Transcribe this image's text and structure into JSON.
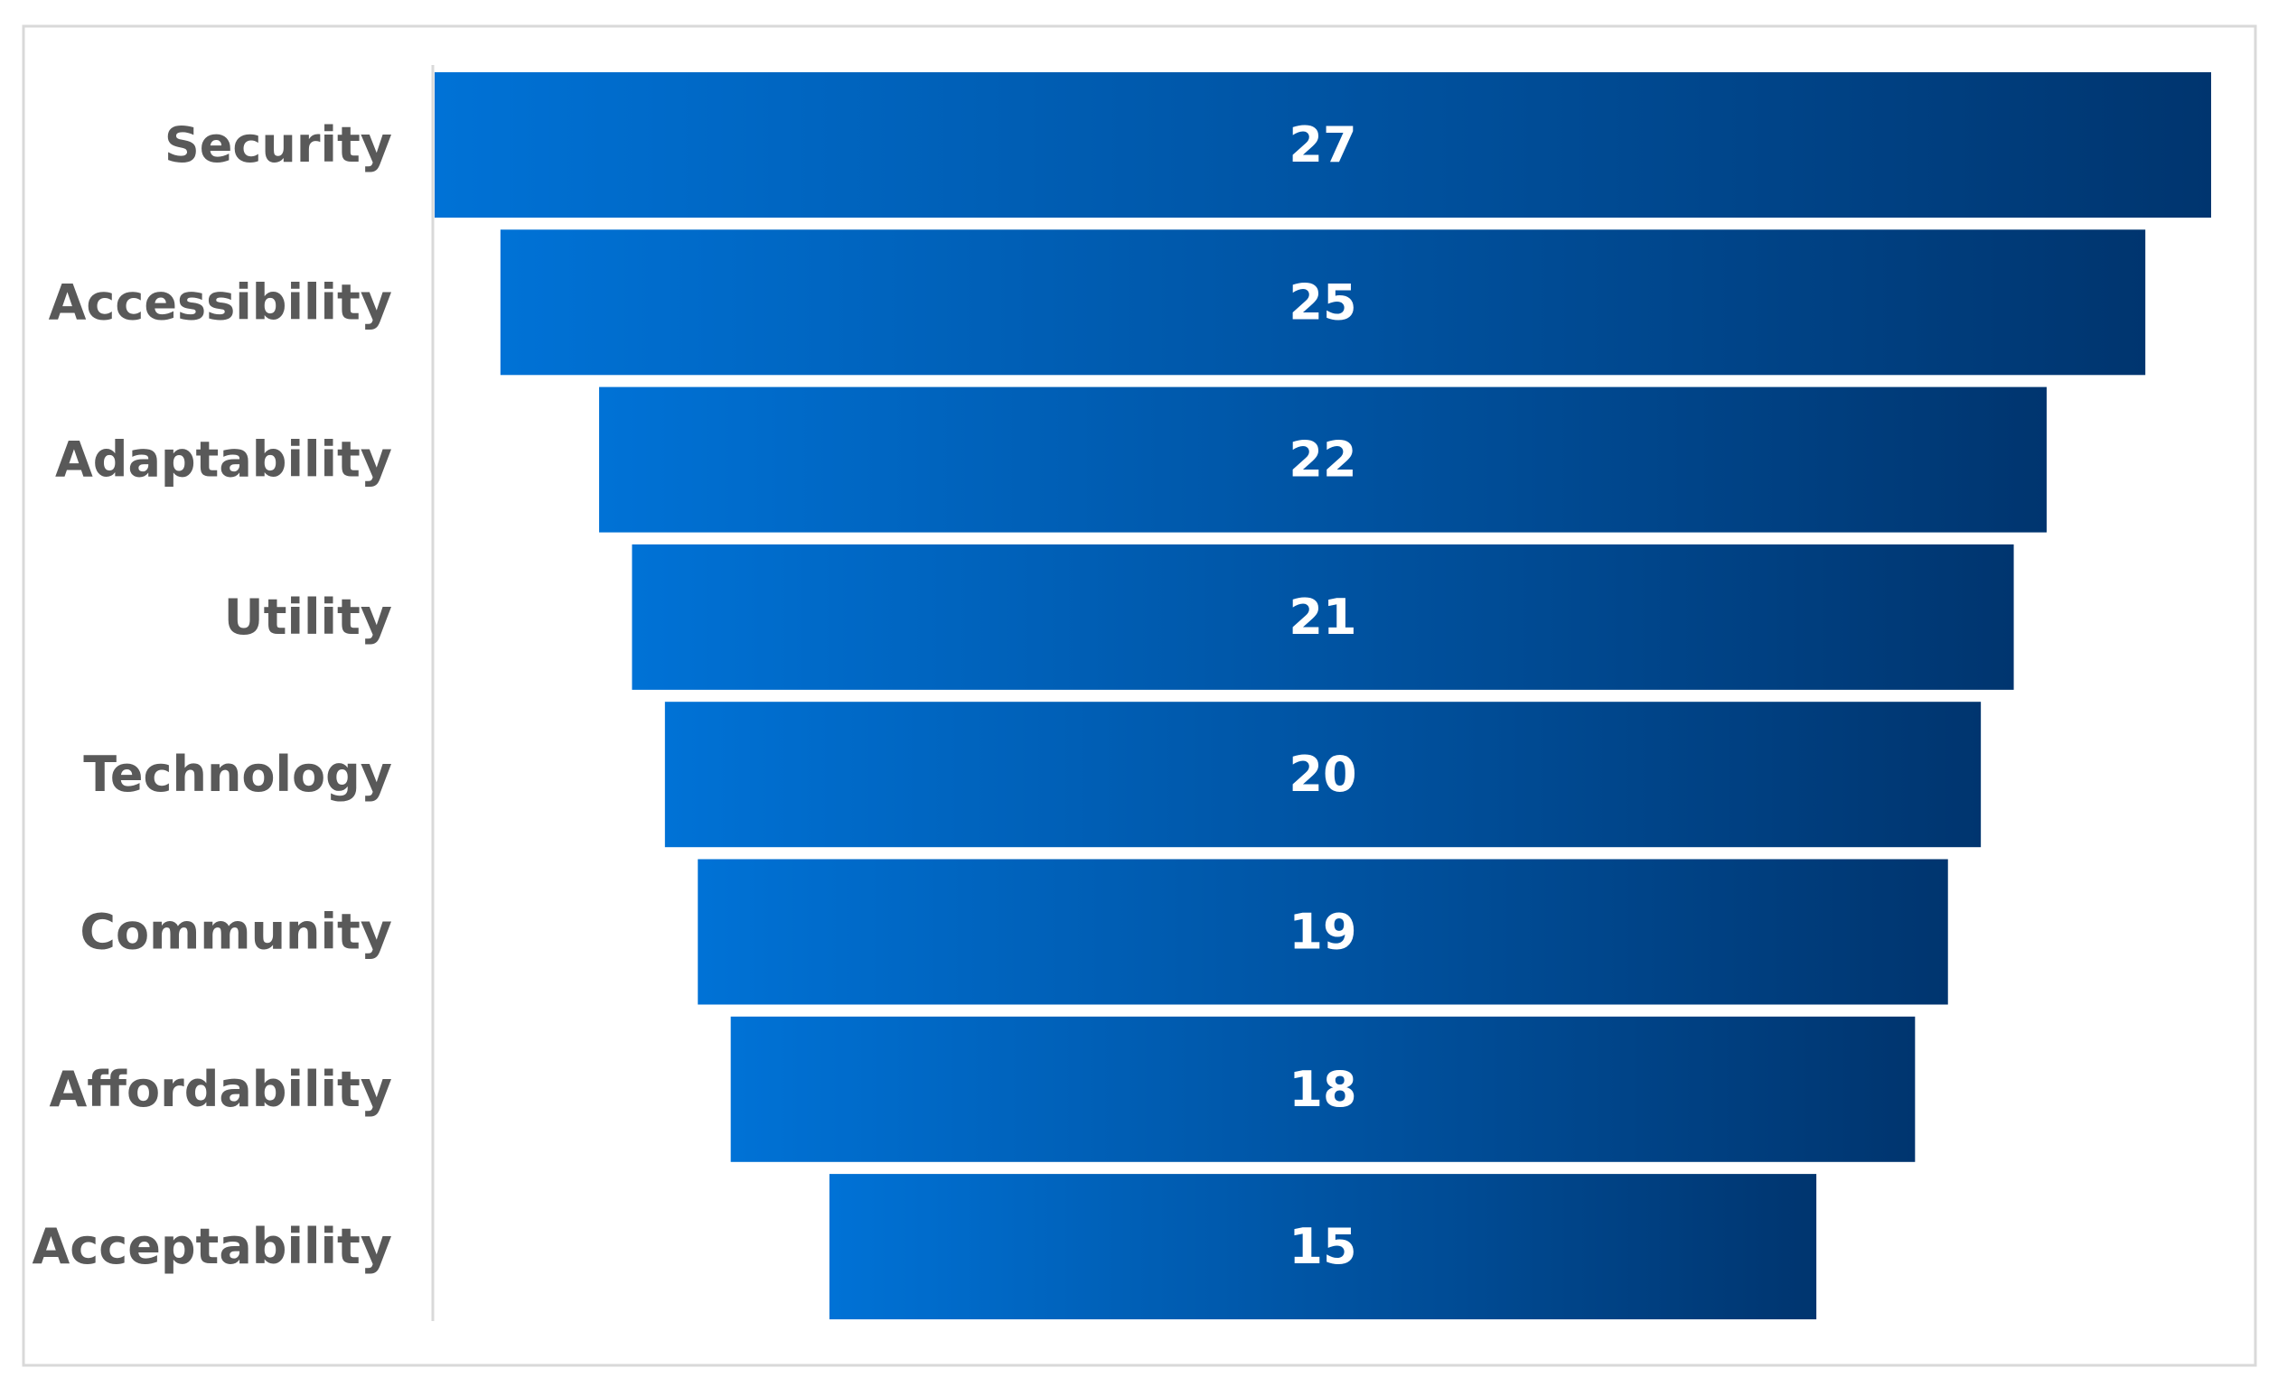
{
  "chart_data": {
    "type": "funnel",
    "categories": [
      "Security",
      "Accessibility",
      "Adaptability",
      "Utility",
      "Technology",
      "Community",
      "Affordability",
      "Acceptability"
    ],
    "values": [
      27,
      25,
      22,
      21,
      20,
      19,
      18,
      15
    ],
    "gradient": [
      "#0072d6",
      "#00356f"
    ]
  }
}
